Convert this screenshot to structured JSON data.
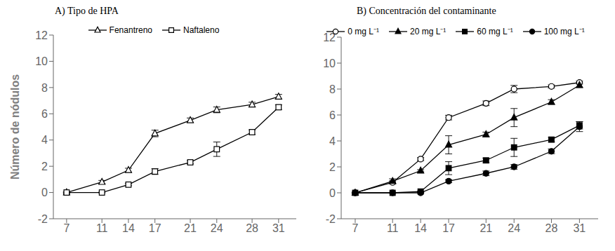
{
  "chart_data": [
    {
      "type": "line",
      "title": "A)  Tipo de HPA",
      "y_label": "Número de nódulos",
      "x": [
        7,
        11,
        14,
        17,
        21,
        24,
        28,
        31
      ],
      "xlim": [
        5.5,
        33
      ],
      "xticks": [
        7,
        11,
        14,
        17,
        21,
        24,
        28,
        31
      ],
      "ylim": [
        -2,
        12
      ],
      "yticks": [
        -2,
        0,
        2,
        4,
        6,
        8,
        10,
        12
      ],
      "grid": false,
      "legend": "top",
      "series": [
        {
          "name": "Fenantreno",
          "color": "#000000",
          "marker": "triangle_open",
          "values": [
            0.0,
            0.8,
            1.7,
            4.5,
            5.5,
            6.3,
            6.7,
            7.3
          ],
          "errors": [
            0.05,
            0.12,
            0.15,
            0.25,
            0.18,
            0.22,
            0.18,
            0.18
          ]
        },
        {
          "name": "Naftaleno",
          "color": "#000000",
          "marker": "square_open",
          "values": [
            0.0,
            0.0,
            0.6,
            1.6,
            2.3,
            3.3,
            4.6,
            6.5
          ],
          "errors": [
            0.03,
            0.03,
            0.08,
            0.22,
            0.12,
            0.55,
            0.18,
            0.18
          ]
        }
      ]
    },
    {
      "type": "line",
      "title": "B)  Concentración del contaminante",
      "x": [
        7,
        11,
        14,
        17,
        21,
        24,
        28,
        31
      ],
      "xlim": [
        5.5,
        33
      ],
      "xticks": [
        7,
        11,
        14,
        17,
        21,
        24,
        28,
        31
      ],
      "ylim": [
        -2,
        12
      ],
      "yticks": [
        -2,
        0,
        2,
        4,
        6,
        8,
        10,
        12
      ],
      "grid": false,
      "legend": "top",
      "series": [
        {
          "name": "0 mg L⁻¹",
          "color": "#000000",
          "marker": "circle_open",
          "values": [
            0.0,
            0.8,
            2.6,
            5.8,
            6.9,
            8.0,
            8.2,
            8.5
          ],
          "errors": [
            0.04,
            0.12,
            0.12,
            0.18,
            0.18,
            0.28,
            0.12,
            0.12
          ]
        },
        {
          "name": "20 mg L⁻¹",
          "color": "#000000",
          "marker": "triangle_filled",
          "values": [
            0.0,
            0.9,
            1.7,
            3.7,
            4.5,
            5.8,
            7.0,
            8.3
          ],
          "errors": [
            0.04,
            0.18,
            0.08,
            0.7,
            0.18,
            0.7,
            0.18,
            0.18
          ]
        },
        {
          "name": "60 mg L⁻¹",
          "color": "#000000",
          "marker": "square_filled",
          "values": [
            0.0,
            0.0,
            0.1,
            1.9,
            2.5,
            3.5,
            4.1,
            5.2
          ],
          "errors": [
            0.02,
            0.02,
            0.04,
            0.5,
            0.18,
            0.7,
            0.18,
            0.28
          ]
        },
        {
          "name": "100 mg L⁻¹",
          "color": "#000000",
          "marker": "circle_filled",
          "values": [
            0.0,
            0.0,
            0.0,
            0.9,
            1.5,
            2.0,
            3.2,
            5.1
          ],
          "errors": [
            0.02,
            0.02,
            0.02,
            0.12,
            0.18,
            0.18,
            0.18,
            0.38
          ]
        }
      ]
    }
  ]
}
